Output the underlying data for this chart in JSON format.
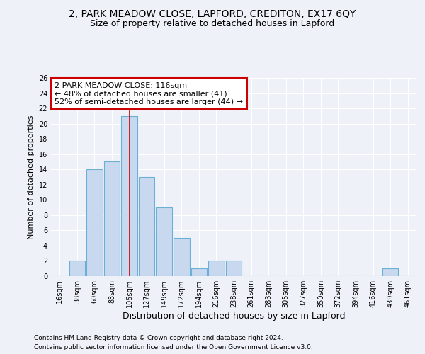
{
  "title1": "2, PARK MEADOW CLOSE, LAPFORD, CREDITON, EX17 6QY",
  "title2": "Size of property relative to detached houses in Lapford",
  "xlabel": "Distribution of detached houses by size in Lapford",
  "ylabel": "Number of detached properties",
  "categories": [
    "16sqm",
    "38sqm",
    "60sqm",
    "83sqm",
    "105sqm",
    "127sqm",
    "149sqm",
    "172sqm",
    "194sqm",
    "216sqm",
    "238sqm",
    "261sqm",
    "283sqm",
    "305sqm",
    "327sqm",
    "350sqm",
    "372sqm",
    "394sqm",
    "416sqm",
    "439sqm",
    "461sqm"
  ],
  "values": [
    0,
    2,
    14,
    15,
    21,
    13,
    9,
    5,
    1,
    2,
    2,
    0,
    0,
    0,
    0,
    0,
    0,
    0,
    0,
    1,
    0
  ],
  "bar_color": "#c8d9ef",
  "bar_edge_color": "#6baed6",
  "property_line_index": 4,
  "property_line_color": "#cc0000",
  "annotation_text": "2 PARK MEADOW CLOSE: 116sqm\n← 48% of detached houses are smaller (41)\n52% of semi-detached houses are larger (44) →",
  "annotation_box_color": "white",
  "annotation_box_edge_color": "#cc0000",
  "ylim": [
    0,
    26
  ],
  "yticks": [
    0,
    2,
    4,
    6,
    8,
    10,
    12,
    14,
    16,
    18,
    20,
    22,
    24,
    26
  ],
  "footnote1": "Contains HM Land Registry data © Crown copyright and database right 2024.",
  "footnote2": "Contains public sector information licensed under the Open Government Licence v3.0.",
  "background_color": "#eef2f8",
  "grid_color": "white",
  "title1_fontsize": 10,
  "title2_fontsize": 9,
  "ylabel_fontsize": 8,
  "xlabel_fontsize": 9,
  "tick_fontsize": 7,
  "annot_fontsize": 8,
  "footnote_fontsize": 6.5
}
